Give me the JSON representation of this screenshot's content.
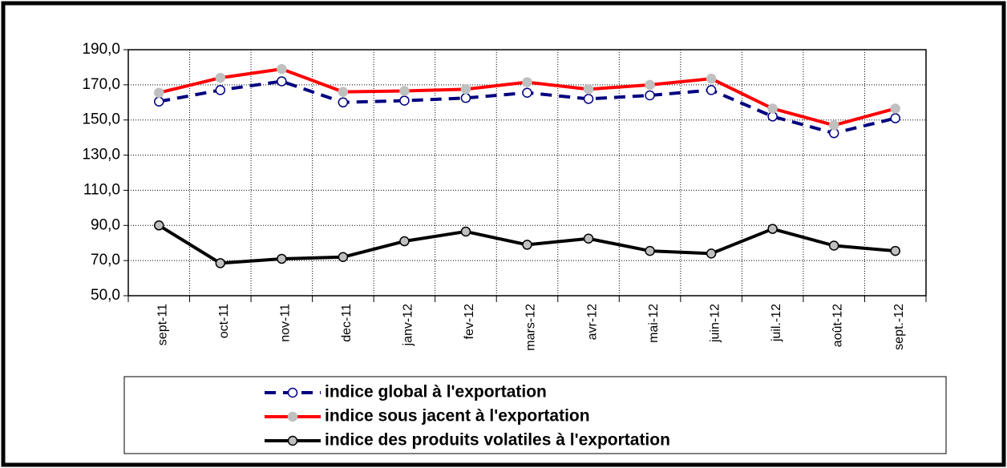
{
  "chart_data": {
    "type": "line",
    "categories": [
      "sept-11",
      "oct-11",
      "nov-11",
      "dec-11",
      "janv-12",
      "fev-12",
      "mars-12",
      "avr-12",
      "mai-12",
      "juin-12",
      "juil.-12",
      "août-12",
      "sept.-12"
    ],
    "series": [
      {
        "name": "indice global à l'exportation",
        "color": "#000080",
        "marker_fill": "#ffffff",
        "line_style": "dashed",
        "values": [
          160.5,
          167,
          172,
          160,
          161,
          162.5,
          165.5,
          162,
          164,
          167,
          152,
          142.5,
          151
        ]
      },
      {
        "name": "indice sous jacent à l'exportation",
        "color": "#ff0000",
        "marker_fill": "#c0c0c0",
        "line_style": "solid",
        "values": [
          165.5,
          174,
          179,
          166,
          166.5,
          167.5,
          171.5,
          167.5,
          170,
          173.5,
          156.5,
          147,
          156.5
        ]
      },
      {
        "name": "indice des produits volatiles à l'exportation",
        "color": "#000000",
        "marker_fill": "#c0c0c0",
        "line_style": "solid",
        "values": [
          90,
          68.5,
          71,
          72,
          81,
          86.5,
          79,
          82.5,
          75.5,
          74,
          88,
          78.5,
          75.5
        ]
      }
    ],
    "ylim": [
      50,
      190
    ],
    "yticks": [
      {
        "value": 50,
        "label": "50,0"
      },
      {
        "value": 70,
        "label": "70,0"
      },
      {
        "value": 90,
        "label": "90,0"
      },
      {
        "value": 110,
        "label": "110,0"
      },
      {
        "value": 130,
        "label": "130,0"
      },
      {
        "value": 150,
        "label": "150,0"
      },
      {
        "value": 170,
        "label": "170,0"
      },
      {
        "value": 190,
        "label": "190,0"
      }
    ],
    "grid": true
  }
}
